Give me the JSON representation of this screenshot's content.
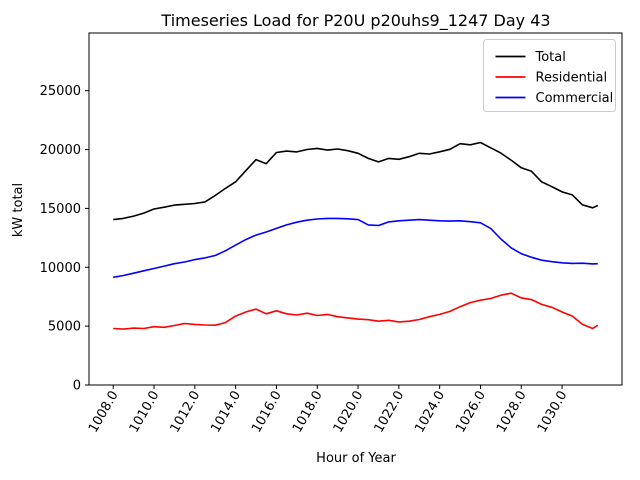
{
  "chart_data": {
    "type": "line",
    "title": "Timeseries Load for P20U p20uhs9_1247  Day 43",
    "xlabel": "Hour of Year",
    "ylabel": "kW total",
    "xlim": [
      1006.8125,
      1032.9375
    ],
    "ylim": [
      0,
      29900
    ],
    "grid": false,
    "background_color": "#ffffff",
    "xticks": {
      "values": [
        1008,
        1010,
        1012,
        1014,
        1016,
        1018,
        1020,
        1022,
        1024,
        1026,
        1028,
        1030
      ],
      "labels": [
        "1008.0",
        "1010.0",
        "1012.0",
        "1014.0",
        "1016.0",
        "1018.0",
        "1020.0",
        "1022.0",
        "1024.0",
        "1026.0",
        "1028.0",
        "1030.0"
      ],
      "rotation_deg": 60
    },
    "yticks": {
      "values": [
        0,
        5000,
        10000,
        15000,
        20000,
        25000
      ],
      "labels": [
        "0",
        "5000",
        "10000",
        "15000",
        "20000",
        "25000"
      ]
    },
    "legend": {
      "position": "upper-right",
      "border_color": "#cccccc",
      "entries": [
        "Total",
        "Residential",
        "Commercial"
      ]
    },
    "x": [
      1008,
      1008.5,
      1009,
      1009.5,
      1010,
      1010.5,
      1011,
      1011.5,
      1012,
      1012.5,
      1013,
      1013.5,
      1014,
      1014.5,
      1015,
      1015.5,
      1016,
      1016.5,
      1017,
      1017.5,
      1018,
      1018.5,
      1019,
      1019.5,
      1020,
      1020.5,
      1021,
      1021.5,
      1022,
      1022.5,
      1023,
      1023.5,
      1024,
      1024.5,
      1025,
      1025.5,
      1026,
      1026.5,
      1027,
      1027.5,
      1028,
      1028.5,
      1029,
      1029.5,
      1030,
      1030.5,
      1031,
      1031.5,
      1031.75
    ],
    "series": [
      {
        "name": "Total",
        "color": "#000000",
        "values": [
          14050,
          14150,
          14350,
          14600,
          14950,
          15100,
          15280,
          15350,
          15420,
          15550,
          16100,
          16700,
          17260,
          18200,
          19150,
          18800,
          19750,
          19870,
          19800,
          20000,
          20100,
          19950,
          20050,
          19900,
          19680,
          19250,
          18950,
          19250,
          19170,
          19390,
          19680,
          19620,
          19810,
          20020,
          20500,
          20400,
          20600,
          20150,
          19700,
          19100,
          18450,
          18150,
          17250,
          16840,
          16400,
          16150,
          15300,
          15050,
          15250
        ]
      },
      {
        "name": "Residential",
        "color": "#ff0000",
        "values": [
          4800,
          4750,
          4830,
          4800,
          4950,
          4900,
          5050,
          5220,
          5150,
          5100,
          5080,
          5300,
          5850,
          6200,
          6450,
          6050,
          6300,
          6050,
          5950,
          6100,
          5900,
          6000,
          5800,
          5700,
          5600,
          5550,
          5420,
          5500,
          5360,
          5420,
          5560,
          5800,
          6000,
          6250,
          6650,
          7000,
          7200,
          7350,
          7630,
          7800,
          7400,
          7250,
          6850,
          6600,
          6200,
          5850,
          5150,
          4800,
          5080
        ]
      },
      {
        "name": "Commercial",
        "color": "#0000ff",
        "values": [
          9150,
          9300,
          9500,
          9700,
          9900,
          10100,
          10300,
          10450,
          10650,
          10800,
          11000,
          11400,
          11880,
          12350,
          12730,
          13000,
          13300,
          13600,
          13830,
          14000,
          14100,
          14150,
          14150,
          14120,
          14050,
          13600,
          13550,
          13850,
          13950,
          14000,
          14050,
          14000,
          13950,
          13920,
          13950,
          13870,
          13780,
          13300,
          12400,
          11650,
          11150,
          10850,
          10600,
          10470,
          10380,
          10330,
          10350,
          10290,
          10300
        ]
      }
    ]
  }
}
